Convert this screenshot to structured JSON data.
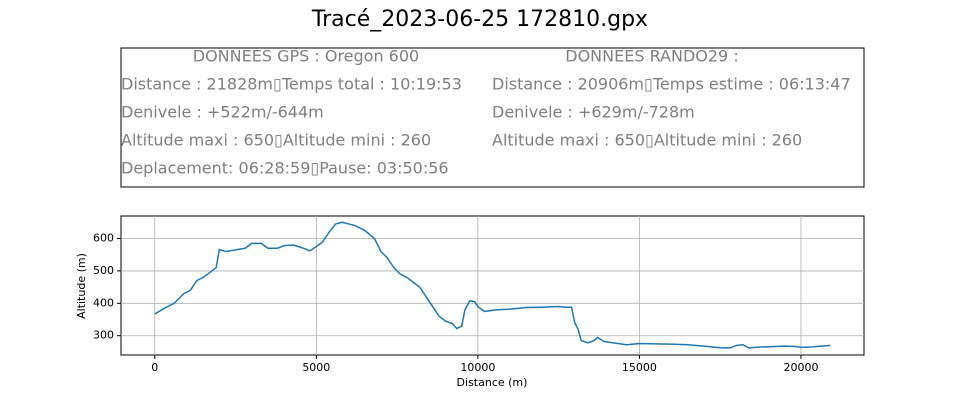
{
  "chart_data": {
    "type": "line",
    "title": "Tracé_2023-06-25 172810.gpx",
    "info_left": [
      "DONNEES GPS :  Oregon 600",
      "Distance : 21828m▯Temps total : 10:19:53",
      "Denivele : +522m/-644m",
      "Altitude maxi : 650▯Altitude mini : 260",
      "Deplacement: 06:28:59▯Pause: 03:50:56"
    ],
    "info_right": [
      "DONNEES RANDO29  :",
      "Distance : 20906m▯Temps estime : 06:13:47",
      "Denivele : +629m/-728m",
      "Altitude maxi : 650▯Altitude mini : 260"
    ],
    "x_label": "Distance (m)",
    "y_label": "Altitude (m)",
    "x": [
      0,
      300,
      600,
      900,
      1100,
      1300,
      1500,
      1700,
      1900,
      2000,
      2200,
      2500,
      2800,
      3000,
      3300,
      3500,
      3800,
      4000,
      4300,
      4600,
      4800,
      5000,
      5200,
      5400,
      5600,
      5800,
      6000,
      6200,
      6500,
      6800,
      7000,
      7200,
      7400,
      7600,
      7800,
      8000,
      8200,
      8400,
      8600,
      8800,
      9000,
      9200,
      9350,
      9500,
      9600,
      9750,
      9900,
      10000,
      10200,
      10600,
      11000,
      11500,
      12000,
      12500,
      12700,
      12900,
      13000,
      13100,
      13200,
      13400,
      13600,
      13700,
      13900,
      14200,
      14600,
      15000,
      15500,
      16000,
      16500,
      17000,
      17500,
      17800,
      18000,
      18200,
      18400,
      18700,
      19000,
      19500,
      19800,
      20000,
      20300,
      20600,
      20906
    ],
    "series": [
      {
        "name": "Altitude",
        "color": "#1f77b4",
        "values": [
          367,
          385,
          400,
          430,
          440,
          470,
          480,
          495,
          510,
          566,
          560,
          565,
          570,
          585,
          585,
          570,
          570,
          578,
          580,
          570,
          562,
          575,
          590,
          620,
          645,
          650,
          645,
          640,
          625,
          600,
          560,
          540,
          510,
          490,
          480,
          465,
          450,
          420,
          390,
          360,
          345,
          338,
          322,
          330,
          380,
          408,
          405,
          390,
          375,
          380,
          382,
          387,
          388,
          390,
          388,
          388,
          340,
          320,
          285,
          278,
          285,
          295,
          282,
          278,
          272,
          276,
          275,
          274,
          272,
          268,
          263,
          262,
          270,
          272,
          262,
          265,
          266,
          268,
          267,
          264,
          265,
          268,
          270
        ]
      }
    ],
    "xlim": [
      -1045,
      21951
    ],
    "ylim": [
      240.5,
      669.5
    ],
    "xticks": [
      0,
      5000,
      10000,
      15000,
      20000
    ],
    "yticks": [
      300,
      400,
      500,
      600
    ],
    "grid": true
  }
}
